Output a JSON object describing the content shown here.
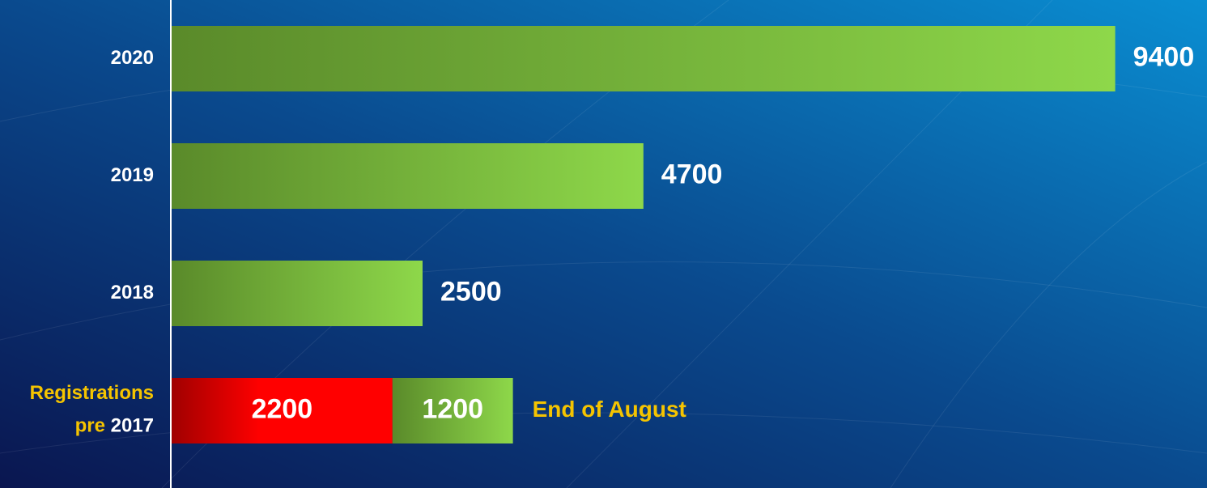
{
  "chart_data": {
    "type": "bar",
    "orientation": "horizontal",
    "categories": [
      "2020",
      "2019",
      "2018",
      "2017"
    ],
    "category_prefix": [
      "Registrations",
      "pre"
    ],
    "series": [
      {
        "color": "#ff0000",
        "values": [
          null,
          null,
          null,
          2200
        ]
      },
      {
        "color": "#8ed84a",
        "values": [
          9400,
          4700,
          2500,
          1200
        ]
      }
    ],
    "annotation": "End of August",
    "xlim": [
      0,
      10000
    ],
    "stacked": true
  }
}
